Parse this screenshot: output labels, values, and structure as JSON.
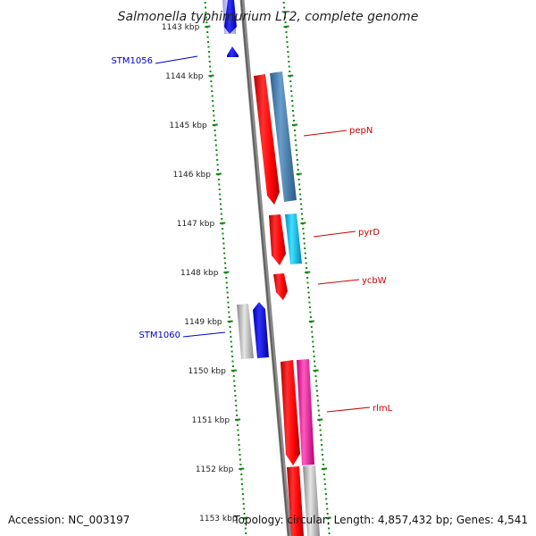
{
  "title": "Salmonella typhimurium LT2, complete genome",
  "footer": {
    "accession": "Accession: NC_003197",
    "topology": "Topology: circular; Length: 4,857,432 bp; Genes: 4,541"
  },
  "ticks": [
    {
      "kbp": 1143,
      "label": "1143 kbp"
    },
    {
      "kbp": 1144,
      "label": "1144 kbp"
    },
    {
      "kbp": 1145,
      "label": "1145 kbp"
    },
    {
      "kbp": 1146,
      "label": "1146 kbp"
    },
    {
      "kbp": 1147,
      "label": "1147 kbp"
    },
    {
      "kbp": 1148,
      "label": "1148 kbp"
    },
    {
      "kbp": 1149,
      "label": "1149 kbp"
    },
    {
      "kbp": 1150,
      "label": "1150 kbp"
    },
    {
      "kbp": 1151,
      "label": "1151 kbp"
    },
    {
      "kbp": 1152,
      "label": "1152 kbp"
    },
    {
      "kbp": 1153,
      "label": "1153 kbp"
    }
  ],
  "labels": [
    {
      "name": "STM1056",
      "color": "#0000cc"
    },
    {
      "name": "pepN",
      "color": "#cc0000"
    },
    {
      "name": "pyrD",
      "color": "#cc0000"
    },
    {
      "name": "ycbW",
      "color": "#cc0000"
    },
    {
      "name": "STM1060",
      "color": "#0000cc"
    },
    {
      "name": "rlmL",
      "color": "#cc0000"
    }
  ],
  "colors": {
    "forward_cds": "#ff1a1a",
    "reverse_cds": "#0000ee",
    "pepN_feature": "#4f86b8",
    "pyrD_feature": "#1ec8f0",
    "rlmL_feature": "#ff2ea6",
    "grey_feature": "#b8b8b8",
    "backbone": "#7a7a7a",
    "tick_dots": "#118811"
  }
}
